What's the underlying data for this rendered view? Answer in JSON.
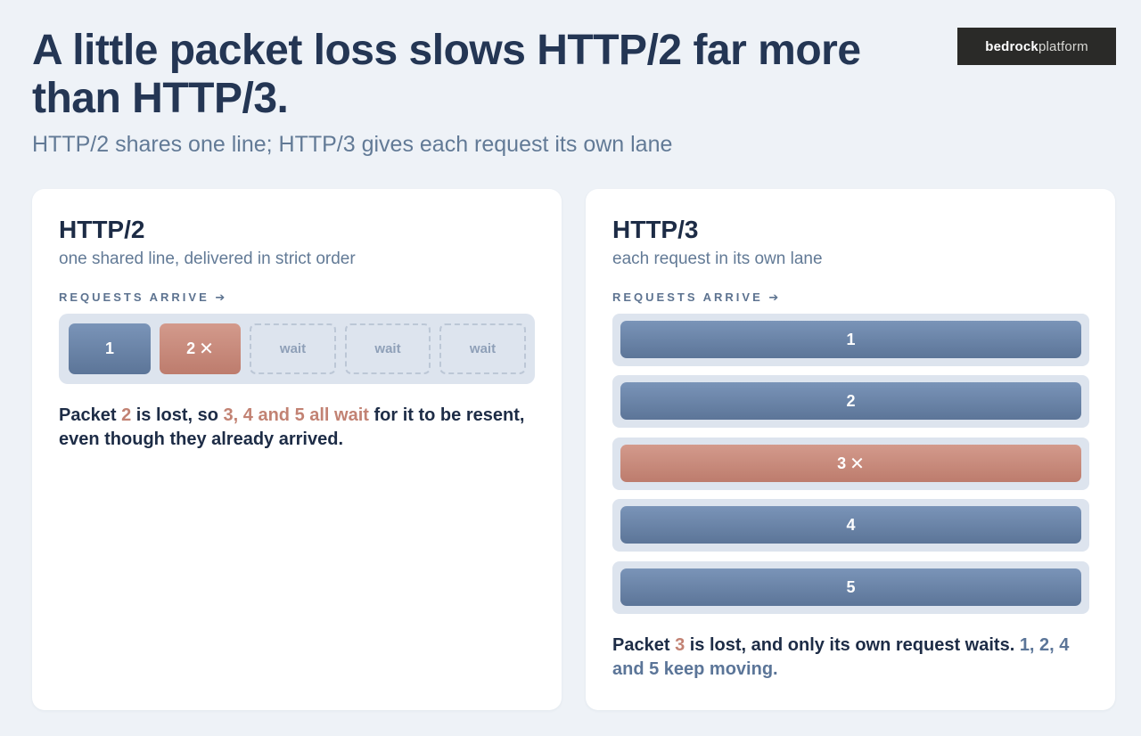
{
  "header": {
    "title": "A little packet loss slows HTTP/2 far more than HTTP/3.",
    "subtitle": "HTTP/2 shares one line; HTTP/3 gives each request its own lane",
    "logo_bold": "bedrock",
    "logo_light": "platform"
  },
  "http2": {
    "title": "HTTP/2",
    "subtitle": "one shared line, delivered in strict order",
    "requests_label": "REQUESTS ARRIVE ➔",
    "packets": [
      {
        "label": "1",
        "state": "ok"
      },
      {
        "label": "2",
        "state": "lost",
        "mark": "✕"
      },
      {
        "label": "wait",
        "state": "wait"
      },
      {
        "label": "wait",
        "state": "wait"
      },
      {
        "label": "wait",
        "state": "wait"
      }
    ],
    "note": {
      "p1": "Packet ",
      "p2": "2",
      "p3": " is lost, so ",
      "p4": "3, 4 and 5 all wait",
      "p5": " for it to be resent, even though they already arrived."
    }
  },
  "http3": {
    "title": "HTTP/3",
    "subtitle": "each request in its own lane",
    "requests_label": "REQUESTS ARRIVE ➔",
    "lanes": [
      {
        "label": "1",
        "state": "ok"
      },
      {
        "label": "2",
        "state": "ok"
      },
      {
        "label": "3",
        "state": "lost",
        "mark": "✕"
      },
      {
        "label": "4",
        "state": "ok"
      },
      {
        "label": "5",
        "state": "ok"
      }
    ],
    "note": {
      "p1": "Packet ",
      "p2": "3",
      "p3": " is lost, and only its own request waits. ",
      "p4": "1, 2, 4 and 5 keep moving."
    }
  },
  "colors": {
    "ok": "#6b85a8",
    "lost": "#c88a7c",
    "background": "#eef2f7"
  }
}
